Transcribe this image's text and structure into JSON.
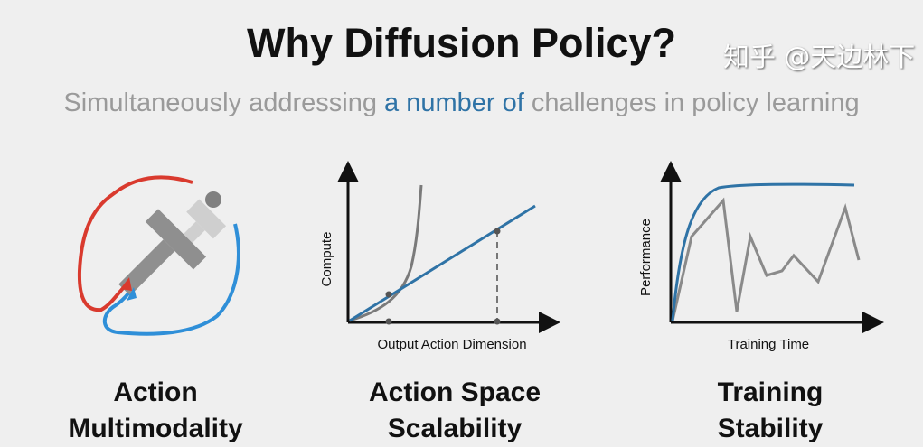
{
  "title": "Why Diffusion Policy?",
  "subtitle": {
    "before": "Simultaneously addressing ",
    "highlight": "a number of",
    "after": " challenges in policy learning"
  },
  "colors": {
    "background": "#efefef",
    "highlight": "#2f73a6",
    "red": "#d93a2e",
    "blue": "#2f8fd8",
    "gray": "#8a8a8a"
  },
  "panels": [
    {
      "title_line1": "Action",
      "title_line2": "Multimodality",
      "icon": "t-push-icon"
    },
    {
      "title_line1": "Action Space",
      "title_line2": "Scalability",
      "xlabel": "Output Action Dimension",
      "ylabel": "Compute"
    },
    {
      "title_line1": "Training",
      "title_line2": "Stability",
      "xlabel": "Training Time",
      "ylabel": "Performance"
    }
  ],
  "watermark": "知乎 @天边林下"
}
